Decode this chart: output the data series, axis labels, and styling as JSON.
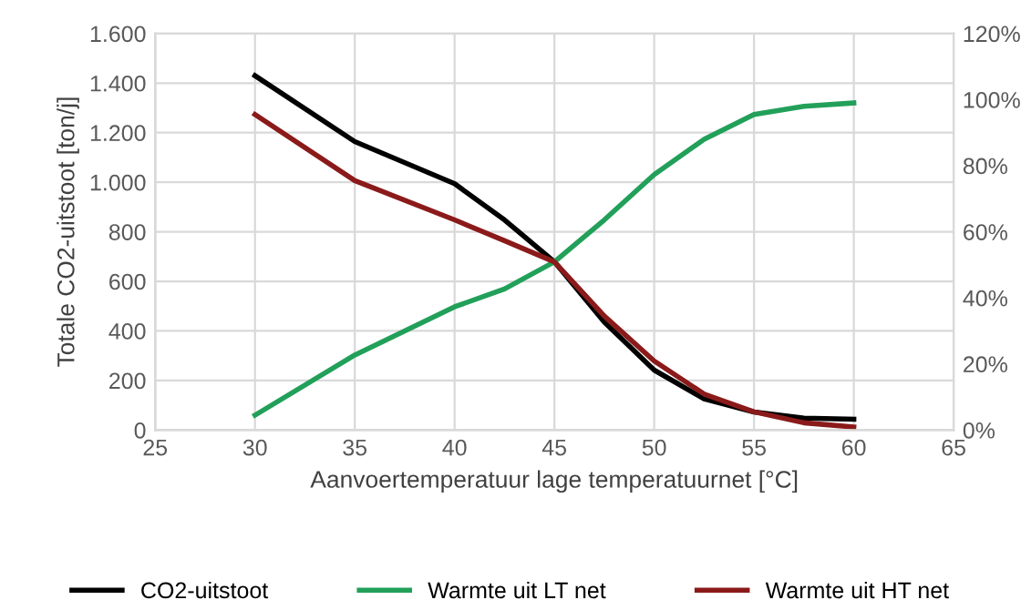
{
  "chart_data": {
    "type": "line",
    "xlabel": "Aanvoertemperatuur lage temperatuurnet [°C]",
    "ylabel": "Totale CO2-uitstoot [ton/j]",
    "x": [
      30,
      35,
      40,
      42.5,
      45,
      47.5,
      50,
      52.5,
      55,
      57.5,
      60
    ],
    "series": [
      {
        "name": "CO2-uitstoot",
        "color": "#000000",
        "values": [
          1430,
          1164,
          994,
          848,
          679,
          436,
          242,
          126,
          73,
          48,
          44
        ]
      },
      {
        "name": "Warmte uit LT net",
        "color": "#22a05a",
        "axis": "y2",
        "values": [
          4.5,
          22.7,
          37.3,
          42.7,
          50.9,
          63.6,
          77.3,
          88,
          95.5,
          98,
          99
        ]
      },
      {
        "name": "Warmte uit HT net",
        "color": "#8b1a1a",
        "axis": "y2",
        "values": [
          95.5,
          75.5,
          63.6,
          57.3,
          50.9,
          34.5,
          20.9,
          10.9,
          5.5,
          2.2,
          0.9
        ]
      }
    ],
    "xlim": [
      25,
      65
    ],
    "xticks": [
      25,
      30,
      35,
      40,
      45,
      50,
      55,
      60,
      65
    ],
    "ylim": [
      0,
      1600
    ],
    "yticks": [
      0,
      200,
      400,
      600,
      800,
      {
        "value": 1000,
        "label": "1.000"
      },
      {
        "value": 1200,
        "label": "1.200"
      },
      {
        "value": 1400,
        "label": "1.400"
      },
      {
        "value": 1600,
        "label": "1.600"
      }
    ],
    "y2lim": [
      0,
      120
    ],
    "y2ticks": [
      {
        "value": 0,
        "label": "0%"
      },
      {
        "value": 20,
        "label": "20%"
      },
      {
        "value": 40,
        "label": "40%"
      },
      {
        "value": 60,
        "label": "60%"
      },
      {
        "value": 80,
        "label": "80%"
      },
      {
        "value": 100,
        "label": "100%"
      },
      {
        "value": 120,
        "label": "120%"
      }
    ],
    "grid": true,
    "legend": "bottom",
    "marker": "none",
    "line_style": "solid"
  }
}
